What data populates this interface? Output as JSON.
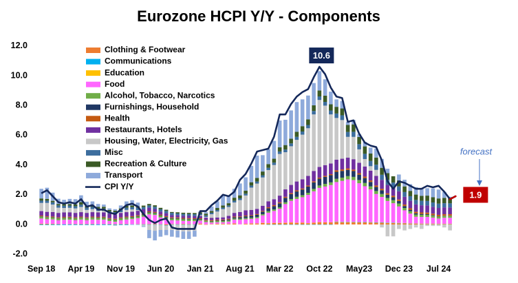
{
  "chart_data": {
    "type": "bar",
    "stacked": true,
    "title": "Eurozone HCPI Y/Y - Components",
    "categories": [
      "Sep 18",
      null,
      null,
      null,
      null,
      null,
      null,
      "Apr 19",
      null,
      null,
      null,
      null,
      null,
      null,
      "Nov 19",
      null,
      null,
      null,
      null,
      null,
      null,
      "Jun 20",
      null,
      null,
      null,
      null,
      null,
      null,
      "Jan 21",
      null,
      null,
      null,
      null,
      null,
      null,
      "Aug 21",
      null,
      null,
      null,
      null,
      null,
      null,
      "Mar 22",
      null,
      null,
      null,
      null,
      null,
      null,
      "Oct 22",
      null,
      null,
      null,
      null,
      null,
      null,
      "May23",
      null,
      null,
      null,
      null,
      null,
      null,
      "Dec 23",
      null,
      null,
      null,
      null,
      null,
      null,
      "Jul 24",
      null,
      null,
      null
    ],
    "ylim": [
      -2,
      12
    ],
    "yticks": [
      {
        "value": -2,
        "label": "-2.0"
      },
      {
        "value": 0,
        "label": "0.0"
      },
      {
        "value": 2,
        "label": "2.0"
      },
      {
        "value": 4,
        "label": "4.0"
      },
      {
        "value": 6,
        "label": "6.0"
      },
      {
        "value": 8,
        "label": "8.0"
      },
      {
        "value": 10,
        "label": "10.0"
      },
      {
        "value": 12,
        "label": "12.0"
      }
    ],
    "grid": false,
    "forecast_label": "forecast",
    "forecast_color": "#c00000",
    "series": [
      {
        "name": "Clothing & Footwear",
        "color": "#ed7d31",
        "values": [
          0.04,
          0.04,
          0.03,
          0.02,
          0,
          0.01,
          0.02,
          0.02,
          0.02,
          0.02,
          0,
          0.01,
          0.02,
          0.02,
          0.02,
          0.02,
          0,
          0.01,
          0.01,
          0.02,
          0.03,
          0.01,
          -0.05,
          0.02,
          0.01,
          0.03,
          0.02,
          0.01,
          0.05,
          -0.02,
          0.02,
          0.04,
          0.04,
          0.03,
          0.06,
          0,
          0.04,
          0.06,
          0.06,
          0.1,
          0.08,
          0.1,
          0.1,
          0.11,
          0.13,
          0.11,
          0.12,
          0.08,
          0.12,
          0.15,
          0.14,
          0.14,
          0.17,
          0.15,
          0.15,
          0.15,
          0.14,
          0.14,
          0.13,
          0.12,
          0.12,
          0.1,
          0.1,
          0.08,
          0.08,
          0.06,
          0.05,
          0.04,
          0.04,
          0.04,
          0.03,
          0.03,
          0.03,
          null
        ]
      },
      {
        "name": "Communications",
        "color": "#00b0f0",
        "values": [
          -0.04,
          -0.04,
          -0.04,
          -0.04,
          -0.04,
          -0.04,
          -0.04,
          -0.04,
          -0.04,
          -0.04,
          -0.04,
          -0.04,
          -0.04,
          -0.04,
          -0.04,
          -0.04,
          -0.02,
          -0.02,
          -0.02,
          -0.02,
          -0.02,
          -0.02,
          -0.02,
          -0.02,
          -0.02,
          -0.02,
          -0.02,
          -0.02,
          0,
          0,
          0,
          0,
          0,
          0,
          0,
          0,
          0,
          0,
          0,
          0,
          -0.02,
          -0.02,
          -0.02,
          -0.02,
          -0.02,
          -0.02,
          -0.02,
          -0.02,
          -0.02,
          -0.02,
          -0.02,
          -0.02,
          0.02,
          0.02,
          0.02,
          0.02,
          0.02,
          0.02,
          0.02,
          0.02,
          0.02,
          0.02,
          0.02,
          0.02,
          0.01,
          0.01,
          0.01,
          0.01,
          0.01,
          0.01,
          0.01,
          0.01,
          0.01,
          null
        ]
      },
      {
        "name": "Education",
        "color": "#ffc000",
        "values": [
          0.01,
          0.01,
          0.01,
          0.01,
          0.01,
          0.01,
          0.01,
          0.01,
          0.01,
          0.01,
          0.01,
          0.01,
          0.01,
          0.01,
          0.01,
          0.01,
          0.01,
          0.01,
          0.01,
          0.01,
          0.01,
          0.01,
          0.01,
          0.01,
          0.01,
          0.01,
          0.01,
          0.01,
          0.01,
          0.01,
          0.01,
          0.01,
          0.01,
          0.01,
          0.01,
          0.01,
          0.01,
          0.01,
          0.01,
          0.01,
          0.01,
          0.01,
          0.01,
          0.01,
          0.01,
          0.01,
          0.01,
          0.01,
          0.01,
          0.01,
          0.01,
          0.01,
          0.01,
          0.01,
          0.01,
          0.01,
          0.01,
          0.01,
          0.01,
          0.01,
          0.01,
          0.01,
          0.01,
          0.01,
          0.01,
          0.01,
          0.01,
          0.01,
          0.01,
          0.01,
          0.01,
          0.01,
          0.01,
          null
        ]
      },
      {
        "name": "Food",
        "color": "#ff66ff",
        "values": [
          0.35,
          0.3,
          0.3,
          0.25,
          0.3,
          0.3,
          0.25,
          0.3,
          0.25,
          0.3,
          0.3,
          0.3,
          0.2,
          0.15,
          0.25,
          0.3,
          0.35,
          0.4,
          0.5,
          0.65,
          0.6,
          0.45,
          0.35,
          0.25,
          0.25,
          0.2,
          0.2,
          0.2,
          0.2,
          0.15,
          0.1,
          0.1,
          0.1,
          0.15,
          0.25,
          0.3,
          0.3,
          0.3,
          0.35,
          0.5,
          0.7,
          0.8,
          0.95,
          1.25,
          1.45,
          1.6,
          1.7,
          1.9,
          2.1,
          2.3,
          2.4,
          2.5,
          2.65,
          2.75,
          2.85,
          2.8,
          2.6,
          2.4,
          2.2,
          1.9,
          1.7,
          1.45,
          1.3,
          1.1,
          0.85,
          0.65,
          0.45,
          0.45,
          0.45,
          0.4,
          0.35,
          0.4,
          0.4,
          null
        ]
      },
      {
        "name": "Alcohol, Tobacco, Narcotics",
        "color": "#70ad47",
        "values": [
          0.12,
          0.12,
          0.12,
          0.12,
          0.12,
          0.12,
          0.12,
          0.12,
          0.12,
          0.12,
          0.12,
          0.12,
          0.12,
          0.12,
          0.12,
          0.12,
          0.11,
          0.11,
          0.11,
          0.11,
          0.11,
          0.11,
          0.11,
          0.11,
          0.11,
          0.11,
          0.11,
          0.11,
          0.08,
          0.08,
          0.08,
          0.08,
          0.08,
          0.08,
          0.08,
          0.08,
          0.08,
          0.08,
          0.08,
          0.08,
          0.1,
          0.1,
          0.1,
          0.12,
          0.12,
          0.14,
          0.14,
          0.14,
          0.16,
          0.16,
          0.18,
          0.18,
          0.22,
          0.22,
          0.22,
          0.22,
          0.22,
          0.22,
          0.2,
          0.2,
          0.2,
          0.2,
          0.2,
          0.2,
          0.16,
          0.16,
          0.15,
          0.14,
          0.14,
          0.13,
          0.12,
          0.12,
          0.12,
          null
        ]
      },
      {
        "name": "Furnishings, Household",
        "color": "#203864",
        "values": [
          0.03,
          0.03,
          0.03,
          0.03,
          0.03,
          0.03,
          0.03,
          0.03,
          0.03,
          0.03,
          0.03,
          0.03,
          0.03,
          0.03,
          0.03,
          0.03,
          0.04,
          0.04,
          0.04,
          0.04,
          0.04,
          0.04,
          0.04,
          0.04,
          0.04,
          0.04,
          0.04,
          0.04,
          0.03,
          0.02,
          0.03,
          0.04,
          0.05,
          0.06,
          0.08,
          0.1,
          0.12,
          0.13,
          0.15,
          0.17,
          0.2,
          0.22,
          0.26,
          0.3,
          0.33,
          0.36,
          0.38,
          0.42,
          0.44,
          0.46,
          0.47,
          0.48,
          0.47,
          0.45,
          0.42,
          0.39,
          0.36,
          0.33,
          0.3,
          0.27,
          0.25,
          0.22,
          0.2,
          0.17,
          0.13,
          0.1,
          0.08,
          0.06,
          0.05,
          0.04,
          0.03,
          0.02,
          0.02,
          null
        ]
      },
      {
        "name": "Health",
        "color": "#c55a11",
        "values": [
          0.05,
          0.05,
          0.05,
          0.05,
          0.05,
          0.05,
          0.05,
          0.05,
          0.05,
          0.05,
          0.05,
          0.05,
          0.05,
          0.05,
          0.05,
          0.05,
          0.05,
          0.05,
          0.05,
          0.05,
          0.05,
          0.05,
          0.05,
          0.05,
          0.05,
          0.05,
          0.05,
          0.05,
          0.05,
          0.05,
          0.05,
          0.05,
          0.05,
          0.05,
          0.05,
          0.05,
          0.05,
          0.05,
          0.05,
          0.05,
          0.07,
          0.07,
          0.07,
          0.07,
          0.07,
          0.07,
          0.07,
          0.07,
          0.07,
          0.07,
          0.07,
          0.07,
          0.1,
          0.1,
          0.1,
          0.1,
          0.1,
          0.1,
          0.1,
          0.1,
          0.1,
          0.1,
          0.1,
          0.1,
          0.1,
          0.1,
          0.1,
          0.1,
          0.1,
          0.1,
          0.1,
          0.1,
          0.1,
          null
        ]
      },
      {
        "name": "Restaurants, Hotels",
        "color": "#7030a0",
        "values": [
          0.3,
          0.3,
          0.3,
          0.3,
          0.3,
          0.3,
          0.3,
          0.3,
          0.3,
          0.3,
          0.3,
          0.3,
          0.3,
          0.3,
          0.3,
          0.3,
          0.3,
          0.3,
          0.3,
          0.25,
          0.2,
          0.2,
          0.2,
          0.15,
          0.15,
          0.15,
          0.15,
          0.15,
          0.15,
          0.15,
          0.15,
          0.15,
          0.15,
          0.2,
          0.25,
          0.3,
          0.35,
          0.35,
          0.35,
          0.35,
          0.4,
          0.4,
          0.45,
          0.5,
          0.55,
          0.6,
          0.62,
          0.65,
          0.7,
          0.72,
          0.72,
          0.72,
          0.72,
          0.72,
          0.72,
          0.7,
          0.7,
          0.68,
          0.66,
          0.65,
          0.6,
          0.56,
          0.56,
          0.55,
          0.52,
          0.5,
          0.5,
          0.48,
          0.48,
          0.46,
          0.46,
          0.46,
          0.45,
          null
        ]
      },
      {
        "name": "Housing, Water, Electricity, Gas",
        "color": "#c8c8c8",
        "values": [
          0.55,
          0.6,
          0.5,
          0.35,
          0.3,
          0.3,
          0.3,
          0.35,
          0.2,
          0.2,
          0.1,
          0.1,
          0,
          -0.05,
          0.05,
          0.15,
          0.15,
          0.05,
          -0.1,
          -0.35,
          -0.4,
          -0.35,
          -0.3,
          -0.35,
          -0.4,
          -0.45,
          -0.45,
          -0.4,
          0.05,
          0.05,
          0.25,
          0.4,
          0.55,
          0.6,
          0.7,
          0.8,
          1.0,
          1.5,
          1.7,
          1.9,
          2.1,
          2.3,
          2.8,
          2.5,
          2.6,
          2.8,
          3.0,
          3.2,
          3.8,
          4.5,
          4.0,
          3.3,
          2.8,
          2.6,
          1.4,
          1.5,
          0.9,
          0.5,
          0.3,
          0.4,
          -0.2,
          -0.8,
          -0.8,
          -0.3,
          -0.4,
          -0.3,
          -0.2,
          -0.3,
          -0.1,
          -0.1,
          -0.1,
          -0.2,
          -0.4,
          null
        ]
      },
      {
        "name": "Misc",
        "color": "#3d6e9e",
        "values": [
          0.15,
          0.15,
          0.15,
          0.15,
          0.15,
          0.15,
          0.15,
          0.15,
          0.15,
          0.15,
          0.15,
          0.15,
          0.15,
          0.15,
          0.15,
          0.15,
          0.15,
          0.15,
          0.15,
          0.15,
          0.15,
          0.15,
          0.15,
          0.15,
          0.12,
          0.12,
          0.12,
          0.12,
          0.1,
          0.1,
          0.1,
          0.1,
          0.1,
          0.1,
          0.12,
          0.12,
          0.12,
          0.14,
          0.14,
          0.15,
          0.15,
          0.16,
          0.17,
          0.18,
          0.19,
          0.2,
          0.21,
          0.22,
          0.23,
          0.24,
          0.25,
          0.26,
          0.3,
          0.32,
          0.33,
          0.34,
          0.35,
          0.35,
          0.35,
          0.35,
          0.34,
          0.34,
          0.33,
          0.33,
          0.32,
          0.31,
          0.3,
          0.3,
          0.3,
          0.29,
          0.29,
          0.28,
          0.28,
          null
        ]
      },
      {
        "name": "Recreation & Culture",
        "color": "#3b5a26",
        "values": [
          0.15,
          0.12,
          0.1,
          0.1,
          0.1,
          0.1,
          0.12,
          0.18,
          0.1,
          0.12,
          0.12,
          0.12,
          0.1,
          0.1,
          0.1,
          0.12,
          0.12,
          0.1,
          0.1,
          0.1,
          0.1,
          0.1,
          0.08,
          0.06,
          0.08,
          0.08,
          0.08,
          0.08,
          0.1,
          0.12,
          0.12,
          0.14,
          0.15,
          0.15,
          0.2,
          0.2,
          0.2,
          0.22,
          0.24,
          0.25,
          0.25,
          0.26,
          0.28,
          0.3,
          0.32,
          0.34,
          0.36,
          0.38,
          0.38,
          0.4,
          0.42,
          0.42,
          0.45,
          0.46,
          0.47,
          0.5,
          0.48,
          0.5,
          0.5,
          0.48,
          0.47,
          0.45,
          0.42,
          0.4,
          0.38,
          0.36,
          0.36,
          0.34,
          0.36,
          0.35,
          0.35,
          0.36,
          0.34,
          null
        ]
      },
      {
        "name": "Transport",
        "color": "#8eaadb",
        "values": [
          0.65,
          0.75,
          0.55,
          0.35,
          0.3,
          0.35,
          0.35,
          0.45,
          0.3,
          0.25,
          0.2,
          0.15,
          0.1,
          0.1,
          0.2,
          0.3,
          0.35,
          0.25,
          -0.05,
          -0.55,
          -0.65,
          -0.45,
          -0.35,
          -0.45,
          -0.45,
          -0.5,
          -0.5,
          -0.4,
          0.05,
          0.1,
          0.3,
          0.45,
          0.65,
          0.5,
          0.6,
          0.8,
          0.9,
          1.1,
          1.5,
          1.1,
          1.0,
          1.2,
          1.8,
          1.7,
          1.9,
          2.0,
          1.8,
          1.6,
          1.5,
          1.3,
          1.1,
          0.85,
          0.5,
          0.5,
          0.2,
          0.3,
          0.2,
          0.3,
          0.4,
          0.6,
          0.6,
          0.3,
          0,
          0.4,
          0.45,
          0.45,
          0.5,
          0.5,
          0.5,
          0.6,
          0.6,
          0.4,
          0.1,
          null
        ]
      },
      {
        "name": "CPI Y/Y",
        "type": "line",
        "color": "#14285a",
        "values": [
          2.1,
          2.3,
          1.9,
          1.5,
          1.4,
          1.5,
          1.4,
          1.7,
          1.2,
          1.3,
          1.0,
          1.0,
          0.8,
          0.7,
          1.0,
          1.3,
          1.4,
          1.2,
          0.7,
          0.3,
          0.1,
          0.3,
          0.4,
          -0.2,
          -0.3,
          -0.3,
          -0.3,
          -0.3,
          0.9,
          0.9,
          1.3,
          1.6,
          2.0,
          1.9,
          2.2,
          3.0,
          3.4,
          4.1,
          4.9,
          5.0,
          5.1,
          5.9,
          7.4,
          7.4,
          8.1,
          8.6,
          8.9,
          9.1,
          9.9,
          10.6,
          10.1,
          9.2,
          8.6,
          8.5,
          6.9,
          7.0,
          6.1,
          5.5,
          5.3,
          5.2,
          4.3,
          2.9,
          2.4,
          2.9,
          2.8,
          2.6,
          2.4,
          2.4,
          2.6,
          2.5,
          2.6,
          2.2,
          1.7,
          1.9
        ],
        "value_labels": [
          null,
          null,
          null,
          null,
          null,
          null,
          null,
          null,
          null,
          null,
          null,
          null,
          null,
          null,
          null,
          null,
          null,
          null,
          null,
          null,
          null,
          null,
          null,
          null,
          null,
          null,
          null,
          null,
          null,
          null,
          null,
          null,
          null,
          null,
          null,
          null,
          null,
          null,
          null,
          null,
          null,
          null,
          null,
          null,
          null,
          null,
          null,
          null,
          null,
          "10.6",
          null,
          null,
          null,
          null,
          null,
          null,
          null,
          null,
          null,
          null,
          null,
          null,
          null,
          null,
          null,
          null,
          null,
          null,
          null,
          null,
          null,
          null,
          null,
          "1.9"
        ]
      }
    ]
  }
}
